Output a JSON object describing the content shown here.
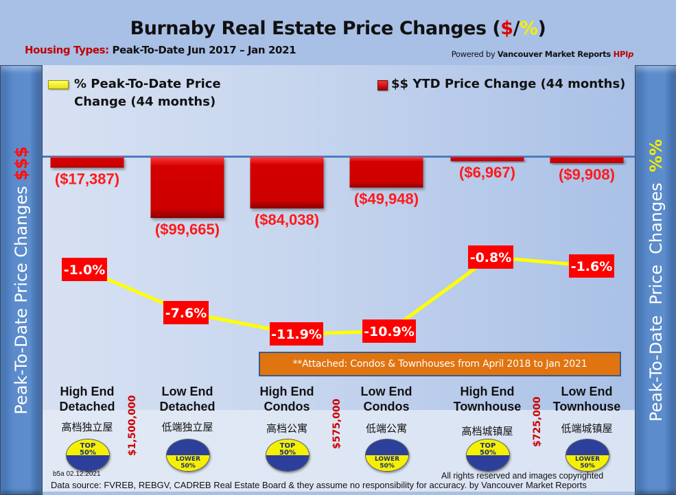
{
  "header": {
    "title_main": "Burnaby Real Estate Price Changes (",
    "title_dollar": "$",
    "title_slash": "/",
    "title_pct": "%",
    "title_close": ")",
    "subtitle_label": "Housing Types:",
    "subtitle_range": " Peak-To-Date Jun 2017 – Jan 2021",
    "powered_prefix": "Powered by ",
    "powered_brand": "Vancouver Market Reports ",
    "powered_hpi": "HPI",
    "powered_p": "p"
  },
  "side_left": {
    "text": "Peak-To-Date Price Changes ",
    "symbol": "$$$"
  },
  "side_right": {
    "text": "Peak-To-Date  Price  Changes  ",
    "symbol": "%%"
  },
  "note": "**Attached: Condos & Townhouses from April 2018 to Jan 2021",
  "categories": [
    {
      "en_line1": "High End",
      "en_line2": "Detached",
      "cn": "高档独立屋",
      "badge_type": "top",
      "badge_line1": "TOP",
      "badge_line2": "50%"
    },
    {
      "en_line1": "Low End",
      "en_line2": "Detached",
      "cn": "低端独立屋",
      "badge_type": "lower",
      "badge_line1": "LOWER",
      "badge_line2": "50%"
    },
    {
      "en_line1": "High End",
      "en_line2": "Condos",
      "cn": "高档公寓",
      "badge_type": "top",
      "badge_line1": "TOP",
      "badge_line2": "50%"
    },
    {
      "en_line1": "Low End",
      "en_line2": "Condos",
      "cn": "低端公寓",
      "badge_type": "lower",
      "badge_line1": "LOWER",
      "badge_line2": "50%"
    },
    {
      "en_line1": "High End",
      "en_line2": "Townhouse",
      "cn": "高档城镇屋",
      "badge_type": "top",
      "badge_line1": "TOP",
      "badge_line2": "50%"
    },
    {
      "en_line1": "Low End",
      "en_line2": "Townhouse",
      "cn": "低端城镇屋",
      "badge_type": "lower",
      "badge_line1": "LOWER",
      "badge_line2": "50%"
    }
  ],
  "thresholds": [
    "$1,500,000",
    "$575,000",
    "$725,000"
  ],
  "footer": {
    "version": "b5a 02.12.2021",
    "rights": "All rights reserved and  images copyrighted",
    "source": "Data source: FVREB, REBGV, CADREB Real Estate Board & they assume no responsibility for accuracy. by Vancouver Market Reports"
  },
  "colors": {
    "bar": "#d40000",
    "line": "#ffff00",
    "pct_box": "#ff0000",
    "note_bg": "#e07410"
  },
  "chart_data": {
    "type": "bar",
    "title": "Burnaby Real Estate Price Changes ($/%)",
    "categories": [
      "High End Detached",
      "Low End Detached",
      "High End Condos",
      "Low End Condos",
      "High End Townhouse",
      "Low End Townhouse"
    ],
    "series": [
      {
        "name": "$$ YTD Price Change (44 months)",
        "type": "bar",
        "values": [
          -17387,
          -99665,
          -84038,
          -49948,
          -6967,
          -9908
        ],
        "labels": [
          "($17,387)",
          "($99,665)",
          "($84,038)",
          "($49,948)",
          "($6,967)",
          "($9,908)"
        ]
      },
      {
        "name": "% Peak-To-Date Price Change (44 months)",
        "type": "line",
        "values": [
          -1.0,
          -7.6,
          -11.9,
          -10.9,
          -0.8,
          -1.6
        ],
        "labels": [
          "-1.0%",
          "-7.6%",
          "-11.9%",
          "-10.9%",
          "-0.8%",
          "-1.6%"
        ]
      }
    ],
    "legend": [
      "% Peak-To-Date Price Change (44 months)",
      "$$ YTD Price Change (44 months)"
    ],
    "legend_line1": "% Peak-To-Date Price",
    "legend_line2": "Change (44 months)",
    "legend_bar": "$$ YTD Price Change (44 months)",
    "ylabel_left": "Peak-To-Date Price Changes $$$",
    "ylabel_right": "Peak-To-Date Price Changes %%",
    "grid": false
  }
}
